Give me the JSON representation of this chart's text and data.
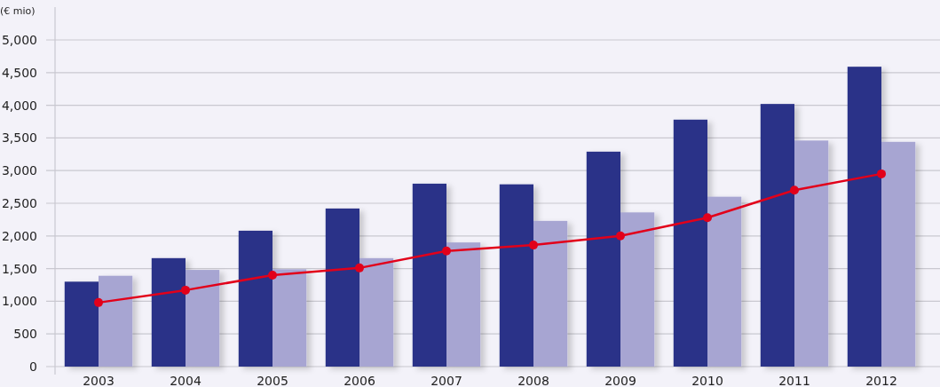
{
  "chart_data": {
    "type": "bar",
    "ylabel": "(€ mio)",
    "categories": [
      "2003",
      "2004",
      "2005",
      "2006",
      "2007",
      "2008",
      "2009",
      "2010",
      "2011",
      "2012"
    ],
    "series": [
      {
        "color": "#2b3388",
        "values": [
          1300,
          1660,
          2080,
          2420,
          2800,
          2790,
          3290,
          3780,
          4020,
          4590
        ]
      },
      {
        "color": "#a7a5d2",
        "values": [
          1390,
          1480,
          1490,
          1660,
          1900,
          2230,
          2360,
          2600,
          3460,
          3440
        ]
      },
      {
        "type": "line",
        "color": "#e2001a",
        "values": [
          980,
          1170,
          1400,
          1510,
          1770,
          1860,
          2000,
          2280,
          2700,
          2950
        ]
      }
    ],
    "ylim": [
      0,
      5000
    ],
    "yticks": [
      0,
      {
        "value": 500,
        "label": "500"
      },
      {
        "value": 1000,
        "label": "1,000"
      },
      {
        "value": 1500,
        "label": "1,500"
      },
      {
        "value": 2000,
        "label": "2,000"
      },
      {
        "value": 2500,
        "label": "2,500"
      },
      {
        "value": 3000,
        "label": "3,000"
      },
      {
        "value": 3500,
        "label": "3,500"
      },
      {
        "value": 4000,
        "label": "4,000"
      },
      {
        "value": 4500,
        "label": "4,500"
      },
      {
        "value": 5000,
        "label": "5,000"
      }
    ],
    "grid": "y",
    "marker": "circle",
    "line_style": "solid"
  }
}
